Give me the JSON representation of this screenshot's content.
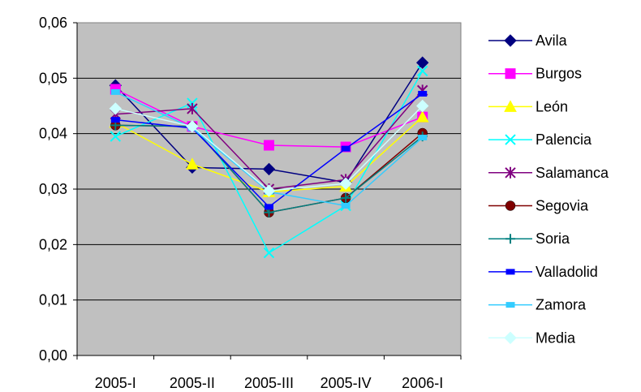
{
  "chart_data": {
    "type": "line",
    "title": "",
    "xlabel": "",
    "ylabel": "",
    "categories": [
      "2005-I",
      "2005-II",
      "2005-III",
      "2005-IV",
      "2006-I"
    ],
    "ylim": [
      0,
      0.06
    ],
    "yticks": [
      "0,00",
      "0,01",
      "0,02",
      "0,03",
      "0,04",
      "0,05",
      "0,06"
    ],
    "grid": true,
    "plot_background": "#C0C0C0",
    "legend_position": "right",
    "series": [
      {
        "name": "Avila",
        "color": "#000080",
        "marker": "diamond",
        "values": [
          0.0487,
          0.0339,
          0.0336,
          0.0312,
          0.0528
        ]
      },
      {
        "name": "Burgos",
        "color": "#FF00FF",
        "marker": "square",
        "values": [
          0.048,
          0.0413,
          0.0379,
          0.0376,
          0.043
        ]
      },
      {
        "name": "León",
        "color": "#FFFF00",
        "marker": "triangle",
        "values": [
          0.042,
          0.0345,
          0.0295,
          0.0305,
          0.043
        ]
      },
      {
        "name": "Palencia",
        "color": "#00FFFF",
        "marker": "x",
        "values": [
          0.0395,
          0.0455,
          0.0185,
          0.027,
          0.0513
        ]
      },
      {
        "name": "Salamanca",
        "color": "#800080",
        "marker": "star",
        "values": [
          0.0435,
          0.0445,
          0.03,
          0.0317,
          0.0478
        ]
      },
      {
        "name": "Segovia",
        "color": "#800000",
        "marker": "circle",
        "values": [
          0.0415,
          0.0413,
          0.0258,
          0.0284,
          0.0401
        ]
      },
      {
        "name": "Soria",
        "color": "#008080",
        "marker": "plus",
        "values": [
          0.0415,
          0.0413,
          0.0258,
          0.0284,
          0.0395
        ]
      },
      {
        "name": "Valladolid",
        "color": "#0000FF",
        "marker": "dash",
        "values": [
          0.0425,
          0.041,
          0.0268,
          0.0373,
          0.0472
        ]
      },
      {
        "name": "Zamora",
        "color": "#33CCFF",
        "marker": "dash",
        "values": [
          0.0475,
          0.041,
          0.0295,
          0.027,
          0.0393
        ]
      },
      {
        "name": "Media",
        "color": "#CCFFFF",
        "marker": "diamond",
        "values": [
          0.0445,
          0.0413,
          0.0297,
          0.031,
          0.045
        ]
      }
    ]
  }
}
